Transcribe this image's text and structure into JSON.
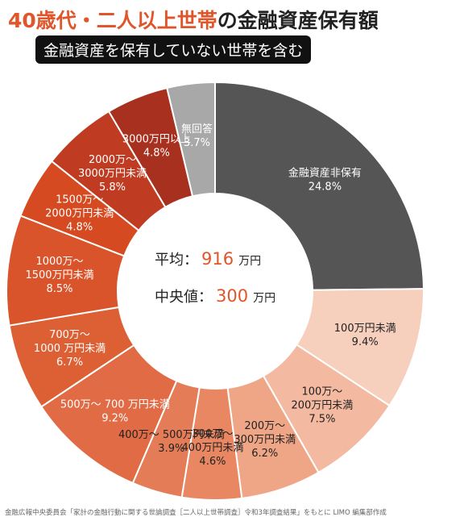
{
  "header": {
    "title_accent": "40歳代・二人以上世帯",
    "title_rest": "の金融資産保有額",
    "subtitle": "金融資産を保有していない世帯を含む"
  },
  "center": {
    "avg_label": "平均",
    "avg_sep": "：",
    "avg_value": "916",
    "avg_unit": "万円",
    "median_label": "中央値",
    "median_sep": "：",
    "median_value": "300",
    "median_unit": "万円"
  },
  "source": "金融広報中央委員会「家計の金融行動に関する世論調査［二人以上世帯調査］令和3年調査結果」をもとに LIMO 編集部作成",
  "colors": {
    "accent": "#e0552a"
  },
  "chart_data": {
    "type": "pie",
    "series": [
      {
        "values": [
          24.8,
          9.4,
          7.5,
          6.2,
          4.6,
          3.9,
          9.2,
          6.7,
          8.5,
          4.8,
          5.8,
          4.8,
          3.7
        ],
        "categories": [
          "金融資産非保有",
          "100万円未満",
          "100万～200万円未満",
          "200万～300万円未満",
          "300万～400万円未満",
          "400万～500万円未満",
          "500万～700万円未満",
          "700万～1000万円未満",
          "1000万～1500万円未満",
          "1500万～2000万円未満",
          "2000万～3000万円未満",
          "3000万円以上",
          "無回答"
        ],
        "labels": [
          [
            "金融資産非保有",
            "24.8%"
          ],
          [
            "100万円未満",
            "9.4%"
          ],
          [
            "100万～",
            "200万円未満",
            "7.5%"
          ],
          [
            "200万～",
            "300万円未満",
            "6.2%"
          ],
          [
            "300万～",
            "400万円未満",
            "4.6%"
          ],
          [
            "400万～ 500万円未満",
            "3.9%"
          ],
          [
            "500万～ 700 万円未満",
            "9.2%"
          ],
          [
            "700万～",
            "1000 万円未満",
            "6.7%"
          ],
          [
            "1000万～",
            "1500万円未満",
            "8.5%"
          ],
          [
            "1500万～",
            "2000万円未満",
            "4.8%"
          ],
          [
            "2000万～",
            "3000万円未満",
            "5.8%"
          ],
          [
            "3000万円以上",
            "4.8%"
          ],
          [
            "無回答",
            "3.7%"
          ]
        ],
        "colors": [
          "#555555",
          "#f6cfbd",
          "#f3b9a1",
          "#efa686",
          "#e88762",
          "#e47c57",
          "#e06b45",
          "#dd6035",
          "#d9542a",
          "#d64a21",
          "#bf3c22",
          "#a8301e",
          "#a8a8a8"
        ],
        "label_colors": [
          "#ffffff",
          "#222222",
          "#222222",
          "#222222",
          "#222222",
          "#222222",
          "#ffffff",
          "#ffffff",
          "#ffffff",
          "#ffffff",
          "#ffffff",
          "#ffffff",
          "#ffffff"
        ]
      }
    ],
    "unit": "%"
  }
}
